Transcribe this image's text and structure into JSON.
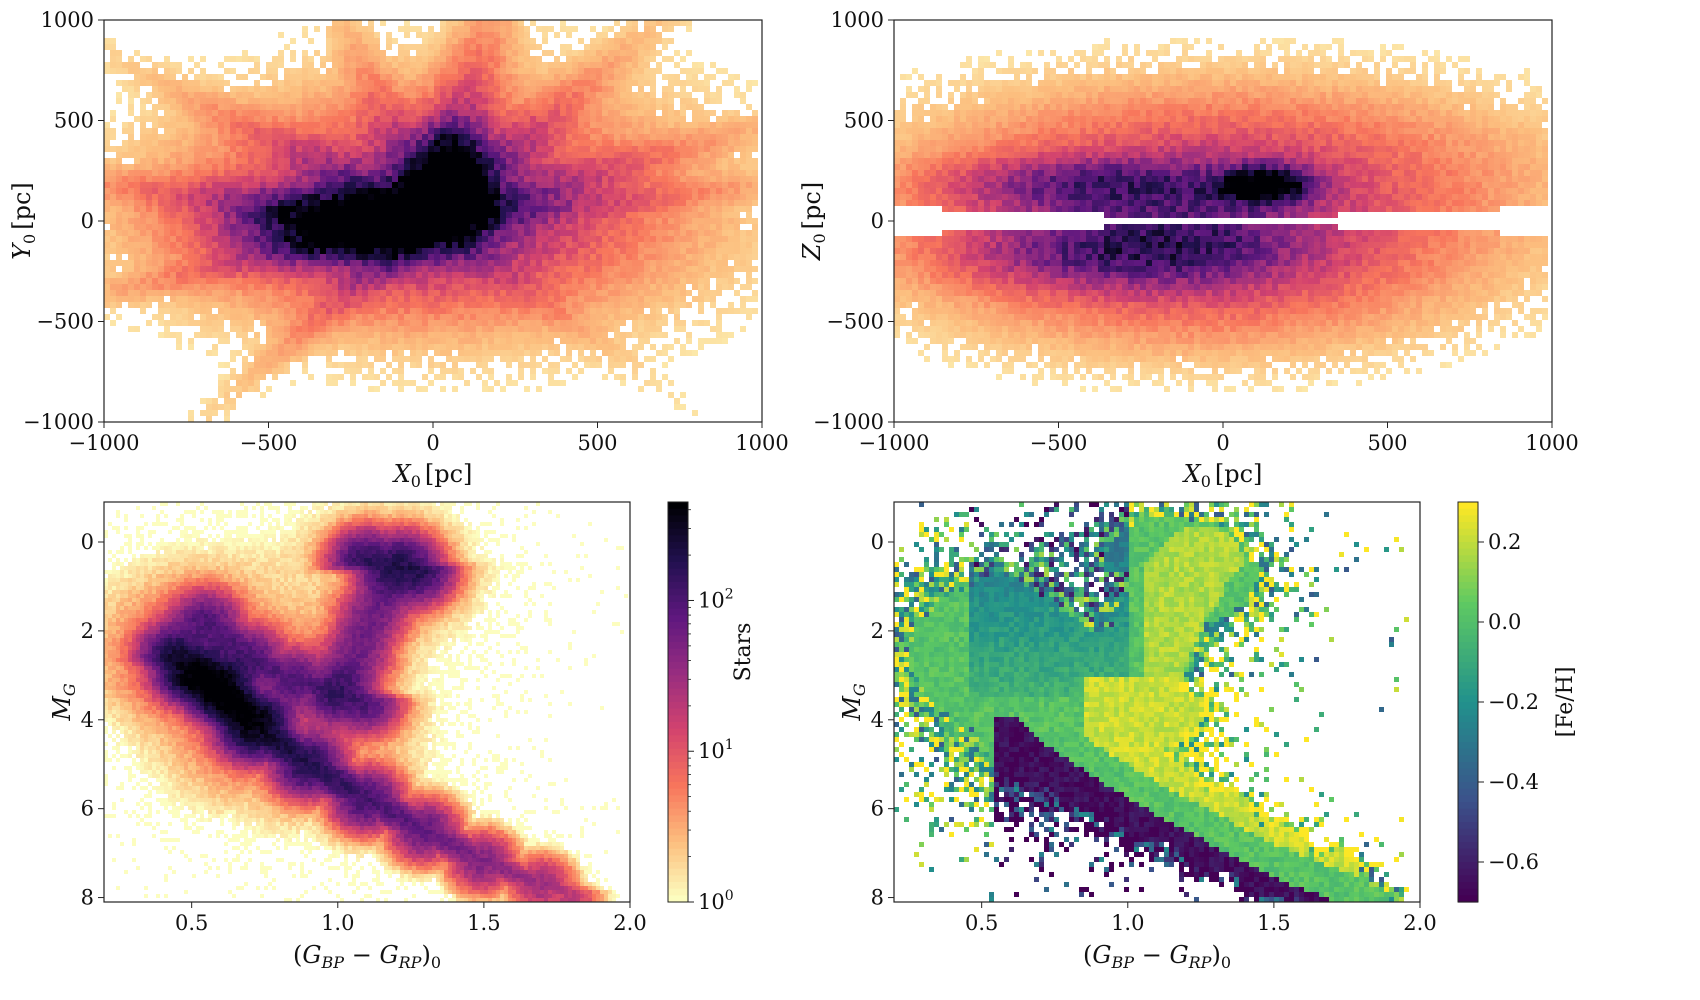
{
  "colormaps": {
    "magma_r": [
      "#fcfdbf",
      "#fcbf7f",
      "#f8765c",
      "#d3436e",
      "#982d80",
      "#5f187f",
      "#221150",
      "#000004"
    ],
    "viridis": [
      "#440154",
      "#3b528b",
      "#21918c",
      "#5ec962",
      "#fde725"
    ]
  },
  "chart_data": [
    {
      "id": "panel-xy",
      "type": "heatmap",
      "xlabel_main": "X",
      "xlabel_sub": "0",
      "xlabel_unit": "[pc]",
      "ylabel_main": "Y",
      "ylabel_sub": "0",
      "ylabel_unit": "[pc]",
      "xlim": [
        -1000,
        1000
      ],
      "ylim": [
        -1000,
        1000
      ],
      "xticks": [
        -1000,
        -500,
        0,
        500,
        1000
      ],
      "yticks": [
        -1000,
        -500,
        0,
        500,
        1000
      ],
      "xtick_labels": [
        "−1000",
        "−500",
        "0",
        "500",
        "1000"
      ],
      "ytick_labels": [
        "−1000",
        "−500",
        "0",
        "500",
        "1000"
      ],
      "colormap": "magma_r",
      "density_features": [
        {
          "kind": "blob",
          "x": -250,
          "y": -30,
          "sx": 230,
          "sy": 100,
          "w": 1.0
        },
        {
          "kind": "blob",
          "x": 60,
          "y": 230,
          "sx": 70,
          "sy": 150,
          "w": 0.95
        },
        {
          "kind": "blob",
          "x": -150,
          "y": 20,
          "sx": 450,
          "sy": 280,
          "w": 0.35
        },
        {
          "kind": "blob",
          "x": 100,
          "y": 100,
          "sx": 600,
          "sy": 450,
          "w": 0.25
        },
        {
          "kind": "ray",
          "angle": 80,
          "width": 70,
          "w": 0.55
        },
        {
          "kind": "ray",
          "angle": 55,
          "width": 60,
          "w": 0.35
        },
        {
          "kind": "ray",
          "angle": 25,
          "width": 55,
          "w": 0.3
        },
        {
          "kind": "ray",
          "angle": 170,
          "width": 60,
          "w": 0.45
        },
        {
          "kind": "ray",
          "angle": 200,
          "width": 50,
          "w": 0.35
        },
        {
          "kind": "ray",
          "angle": 140,
          "width": 55,
          "w": 0.3
        },
        {
          "kind": "ray",
          "angle": 105,
          "width": 50,
          "w": 0.28
        },
        {
          "kind": "ray",
          "angle": 10,
          "width": 45,
          "w": 0.25
        },
        {
          "kind": "ray",
          "angle": 235,
          "width": 45,
          "w": 0.25
        },
        {
          "kind": "ray",
          "angle": 310,
          "width": 40,
          "w": 0.12
        }
      ]
    },
    {
      "id": "panel-xz",
      "type": "heatmap",
      "xlabel_main": "X",
      "xlabel_sub": "0",
      "xlabel_unit": "[pc]",
      "ylabel_main": "Z",
      "ylabel_sub": "0",
      "ylabel_unit": "[pc]",
      "xlim": [
        -1000,
        1000
      ],
      "ylim": [
        -1000,
        1000
      ],
      "xticks": [
        -1000,
        -500,
        0,
        500,
        1000
      ],
      "yticks": [
        -1000,
        -500,
        0,
        500,
        1000
      ],
      "xtick_labels": [
        "−1000",
        "−500",
        "0",
        "500",
        "1000"
      ],
      "ytick_labels": [
        "−1000",
        "−500",
        "0",
        "500",
        "1000"
      ],
      "colormap": "magma_r",
      "empty_wedge_deg": 4,
      "density_features": [
        {
          "kind": "blob",
          "x": 140,
          "y": 180,
          "sx": 90,
          "sy": 60,
          "w": 1.0
        },
        {
          "kind": "blob",
          "x": -420,
          "y": 180,
          "sx": 300,
          "sy": 90,
          "w": 0.55
        },
        {
          "kind": "blob",
          "x": -350,
          "y": -150,
          "sx": 330,
          "sy": 120,
          "w": 0.55
        },
        {
          "kind": "blob",
          "x": 0,
          "y": 250,
          "sx": 700,
          "sy": 300,
          "w": 0.35
        },
        {
          "kind": "blob",
          "x": -100,
          "y": -250,
          "sx": 600,
          "sy": 280,
          "w": 0.3
        }
      ]
    },
    {
      "id": "panel-cmd-counts",
      "type": "heatmap",
      "xlabel": "(G_BP − G_RP)_0",
      "ylabel_main": "M",
      "ylabel_sub": "G",
      "xlim": [
        0.2,
        2.0
      ],
      "ylim": [
        8.1,
        -0.9
      ],
      "xticks": [
        0.5,
        1.0,
        1.5,
        2.0
      ],
      "yticks": [
        0,
        2,
        4,
        6,
        8
      ],
      "xtick_labels": [
        "0.5",
        "1.0",
        "1.5",
        "2.0"
      ],
      "ytick_labels": [
        "0",
        "2",
        "4",
        "6",
        "8"
      ],
      "colormap": "magma_r",
      "colorbar": {
        "label": "Stars",
        "scale": "log",
        "range": [
          1,
          450
        ],
        "ticks": [
          1,
          10,
          100
        ],
        "tick_base": "10",
        "tick_exponents": [
          "0",
          "1",
          "2"
        ]
      },
      "sequences": [
        {
          "name": "main-sequence",
          "points": [
            [
              0.55,
              3.2
            ],
            [
              0.72,
              4.2
            ],
            [
              0.9,
              5.0
            ],
            [
              1.1,
              5.8
            ],
            [
              1.3,
              6.5
            ],
            [
              1.5,
              7.2
            ],
            [
              1.7,
              7.7
            ],
            [
              1.8,
              7.95
            ]
          ],
          "peak": 450
        },
        {
          "name": "turnoff",
          "points": [
            [
              0.45,
              2.6
            ],
            [
              0.5,
              2.9
            ],
            [
              0.6,
              3.3
            ],
            [
              0.7,
              3.8
            ]
          ],
          "peak": 250
        },
        {
          "name": "subgiant-branch",
          "points": [
            [
              0.55,
              1.8
            ],
            [
              0.7,
              2.6
            ],
            [
              0.85,
              3.1
            ],
            [
              1.0,
              3.4
            ],
            [
              1.1,
              3.6
            ]
          ],
          "peak": 90
        },
        {
          "name": "giant-branch",
          "points": [
            [
              1.0,
              3.4
            ],
            [
              1.07,
              2.5
            ],
            [
              1.12,
              1.7
            ],
            [
              1.18,
              1.0
            ],
            [
              1.25,
              0.5
            ]
          ],
          "peak": 60
        },
        {
          "name": "red-clump",
          "points": [
            [
              1.1,
              0.45
            ],
            [
              1.2,
              0.55
            ],
            [
              1.28,
              0.65
            ]
          ],
          "peak": 150
        }
      ]
    },
    {
      "id": "panel-cmd-feh",
      "type": "heatmap",
      "xlabel": "(G_BP − G_RP)_0",
      "ylabel_main": "M",
      "ylabel_sub": "G",
      "xlim": [
        0.2,
        2.0
      ],
      "ylim": [
        8.1,
        -0.9
      ],
      "xticks": [
        0.5,
        1.0,
        1.5,
        2.0
      ],
      "yticks": [
        0,
        2,
        4,
        6,
        8
      ],
      "xtick_labels": [
        "0.5",
        "1.0",
        "1.5",
        "2.0"
      ],
      "ytick_labels": [
        "0",
        "2",
        "4",
        "6",
        "8"
      ],
      "colormap": "viridis",
      "colorbar": {
        "label": "[Fe/H]",
        "scale": "linear",
        "range": [
          -0.7,
          0.3
        ],
        "ticks": [
          -0.6,
          -0.4,
          -0.2,
          0.0,
          0.2
        ],
        "tick_labels": [
          "−0.6",
          "−0.4",
          "−0.2",
          "0.0",
          "0.2"
        ]
      },
      "metallicity_trends": [
        {
          "region": "blue-edge-of-main-sequence",
          "value": -0.65
        },
        {
          "region": "main-sequence-ridge",
          "value": 0.05
        },
        {
          "region": "red-edge-of-main-sequence",
          "value": 0.2
        },
        {
          "region": "giant-branch-red-edge",
          "value": 0.22
        },
        {
          "region": "giant-branch-blue-edge",
          "value": -0.3
        }
      ]
    }
  ]
}
